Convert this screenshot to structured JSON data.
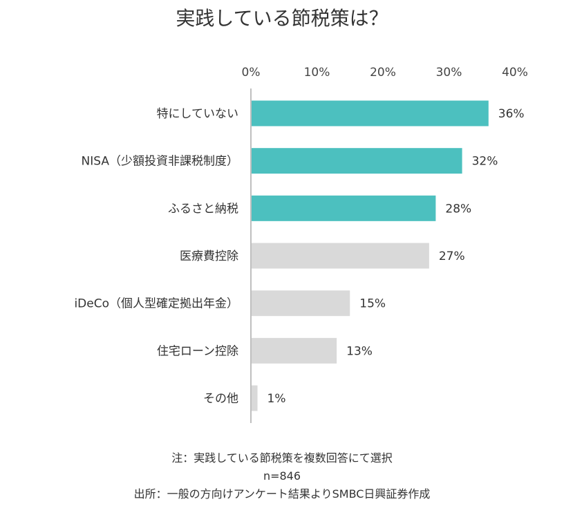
{
  "chart_data": {
    "type": "bar",
    "orientation": "horizontal",
    "title": "実践している節税策は？",
    "xlim": [
      0,
      40
    ],
    "x_ticks": [
      "0%",
      "10%",
      "20%",
      "30%",
      "40%"
    ],
    "categories": [
      "特にしていない",
      "NISA（少額投資非課税制度）",
      "ふるさと納税",
      "医療費控除",
      "iDeCo（個人型確定拠出年金）",
      "住宅ローン控除",
      "その他"
    ],
    "values": [
      36,
      32,
      28,
      27,
      15,
      13,
      1
    ],
    "value_labels": [
      "36%",
      "32%",
      "28%",
      "27%",
      "15%",
      "13%",
      "1%"
    ],
    "highlighted": [
      true,
      true,
      true,
      false,
      false,
      false,
      false
    ],
    "colors": {
      "highlight": "#4cc0bf",
      "normal": "#d9d9d9",
      "axis": "#bfbfbf"
    }
  },
  "notes": {
    "line1": "注：実践している節税策を複数回答にて選択",
    "line2": "n=846",
    "line3": "出所：一般の方向けアンケート結果よりSMBC日興証券作成"
  }
}
